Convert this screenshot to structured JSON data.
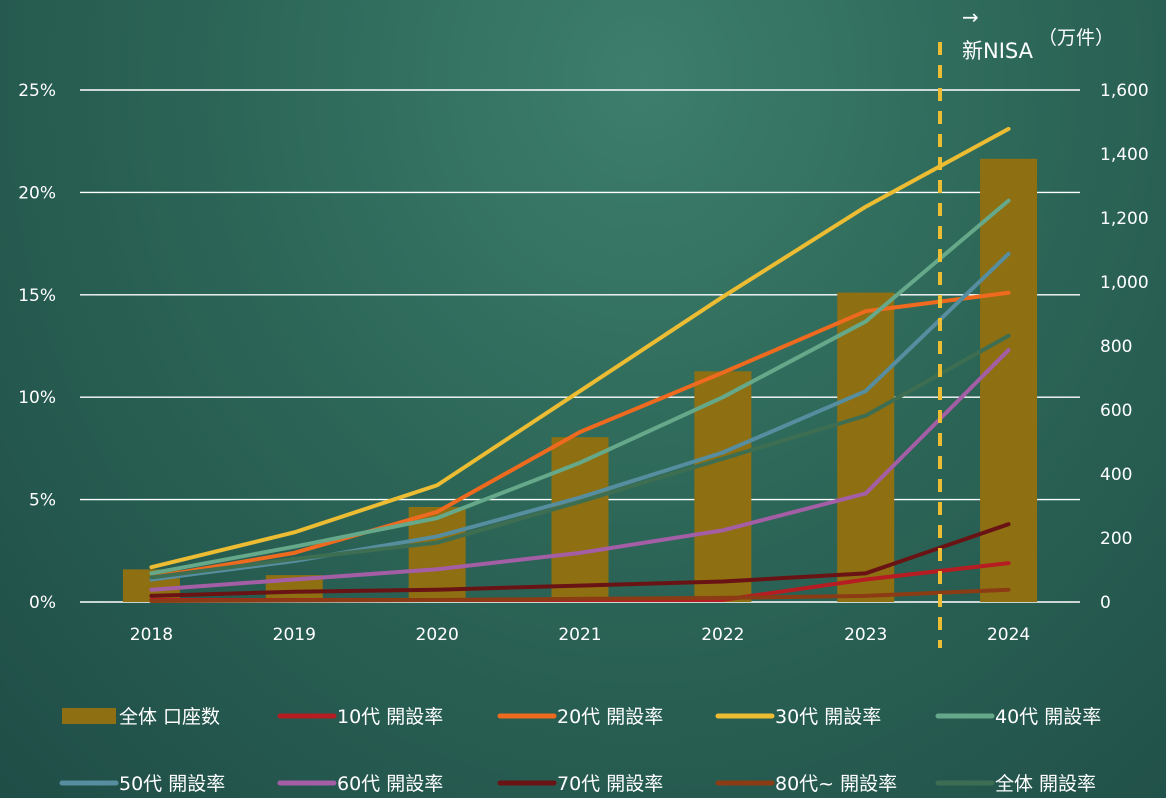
{
  "chart_data": {
    "type": "bar+line",
    "title": "",
    "categories": [
      "2018",
      "2019",
      "2020",
      "2021",
      "2022",
      "2023",
      "2024"
    ],
    "left_axis": {
      "ticks": [
        "0%",
        "5%",
        "10%",
        "15%",
        "20%",
        "25%"
      ],
      "ylim": [
        0,
        25
      ]
    },
    "right_axis": {
      "unit": "（万件）",
      "ticks": [
        "0",
        "200",
        "400",
        "600",
        "800",
        "1,000",
        "1,200",
        "1,400",
        "1,600"
      ],
      "ylim": [
        0,
        1600
      ]
    },
    "annotation": {
      "arrow": "→",
      "label": "新NISA"
    },
    "grid": true,
    "legend_position": "bottom",
    "bars": {
      "name": "全体 口座数",
      "axis": "right",
      "color": "#8e6f12",
      "values": [
        102,
        84,
        297,
        515,
        721,
        967,
        1385
      ]
    },
    "series": [
      {
        "name": "10代 開設率",
        "color": "#b51d22",
        "values": [
          0.1,
          0.1,
          0.1,
          0.1,
          0.1,
          1.1,
          1.9
        ]
      },
      {
        "name": "20代 開設率",
        "color": "#ee6a1e",
        "values": [
          1.2,
          2.4,
          4.4,
          8.3,
          11.2,
          14.2,
          15.1
        ]
      },
      {
        "name": "30代 開設率",
        "color": "#ecbc33",
        "values": [
          1.7,
          3.4,
          5.7,
          10.3,
          14.9,
          19.3,
          23.1
        ]
      },
      {
        "name": "40代 開設率",
        "color": "#66a98a",
        "values": [
          1.4,
          2.7,
          4.1,
          6.8,
          10.0,
          13.7,
          19.6
        ]
      },
      {
        "name": "50代 開設率",
        "color": "#568ea0",
        "values": [
          1.1,
          2.0,
          3.2,
          5.1,
          7.3,
          10.3,
          17.0
        ]
      },
      {
        "name": "60代 開設率",
        "color": "#a35ea5",
        "values": [
          0.6,
          1.1,
          1.6,
          2.4,
          3.5,
          5.3,
          12.3
        ]
      },
      {
        "name": "70代 開設率",
        "color": "#6a1314",
        "values": [
          0.3,
          0.5,
          0.6,
          0.8,
          1.0,
          1.4,
          3.8
        ]
      },
      {
        "name": "80代~ 開設率",
        "color": "#8c3c14",
        "values": [
          0.05,
          0.08,
          0.1,
          0.15,
          0.2,
          0.3,
          0.6
        ]
      },
      {
        "name": "全体 開設率",
        "color": "#3d6e52",
        "values": [
          1.2,
          2.1,
          2.9,
          4.9,
          7.0,
          9.1,
          13.0
        ]
      }
    ]
  }
}
